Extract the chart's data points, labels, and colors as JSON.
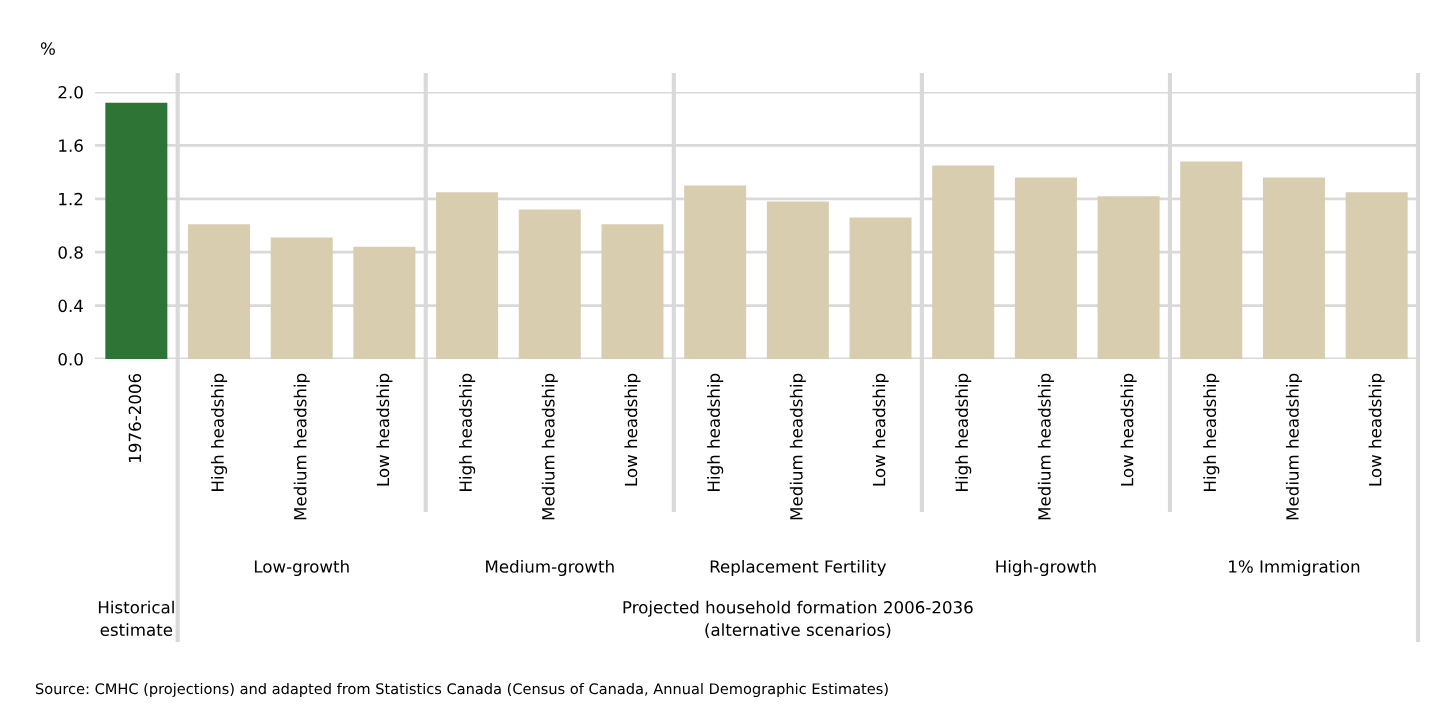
{
  "chart_data": {
    "type": "bar",
    "ylabel": "%",
    "categories": [
      "1976-2006",
      "High headship",
      "Medium headship",
      "Low headship",
      "High headship",
      "Medium headship",
      "Low headship",
      "High headship",
      "Medium headship",
      "Low headship",
      "High headship",
      "Medium headship",
      "Low headship",
      "High headship",
      "Medium headship",
      "Low headship"
    ],
    "values": [
      1.92,
      1.01,
      0.91,
      0.84,
      1.25,
      1.12,
      1.01,
      1.3,
      1.18,
      1.06,
      1.45,
      1.36,
      1.22,
      1.48,
      1.36,
      1.25
    ],
    "colors": [
      "#2e7434",
      "#d9cdb0",
      "#d9cdb0",
      "#d9cdb0",
      "#d9cdb0",
      "#d9cdb0",
      "#d9cdb0",
      "#d9cdb0",
      "#d9cdb0",
      "#d9cdb0",
      "#d9cdb0",
      "#d9cdb0",
      "#d9cdb0",
      "#d9cdb0",
      "#d9cdb0",
      "#d9cdb0"
    ],
    "ylim": [
      0,
      2.0
    ],
    "yticks": [
      {
        "value": 0,
        "label": "0.0"
      },
      {
        "value": 0.4,
        "label": "0.4"
      },
      {
        "value": 0.8,
        "label": "0.8"
      },
      {
        "value": 1.2,
        "label": "1.2"
      },
      {
        "value": 1.6,
        "label": "1.6"
      },
      {
        "value": 2.0,
        "label": "2.0"
      }
    ],
    "grid": "y",
    "annotations": [
      "Low-growth",
      "Medium-growth",
      "Replacement Fertility",
      "High-growth",
      "1% Immigration",
      "Historical\nestimate",
      "Projected household formation 2006-2036\n(alternative scenarios)",
      "Source: CMHC (projections) and adapted from Statistics Canada (Census of Canada, Annual Demographic Estimates)"
    ]
  }
}
